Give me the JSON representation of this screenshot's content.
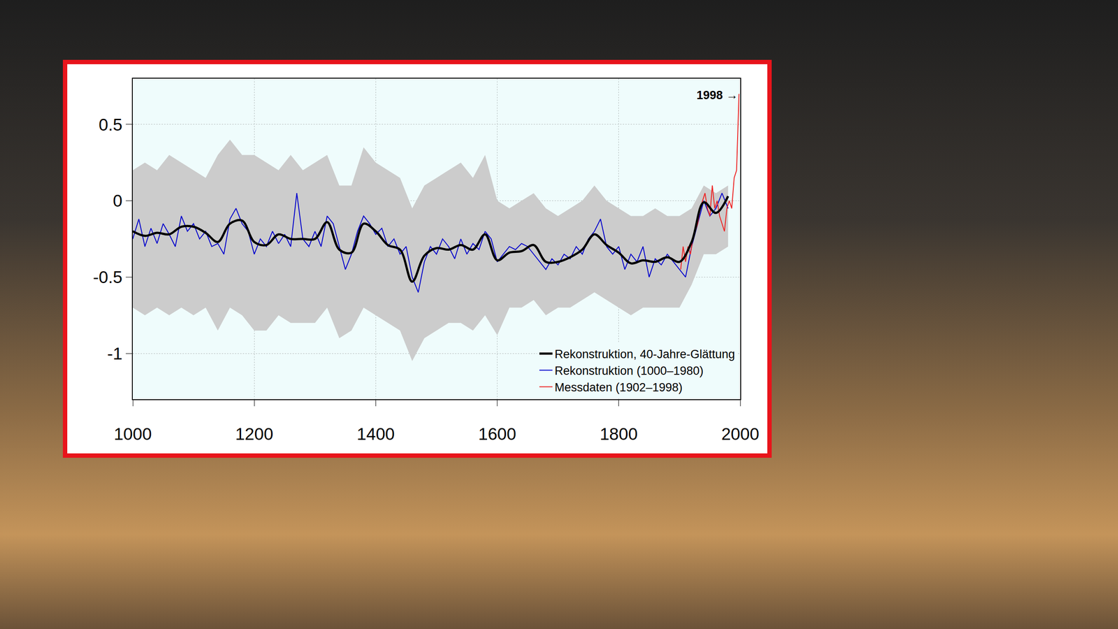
{
  "chart_data": {
    "type": "line",
    "xlim": [
      1000,
      2000
    ],
    "xticks": [
      1000,
      1200,
      1400,
      1600,
      1800,
      2000
    ],
    "ylim": [
      -1.3,
      0.8
    ],
    "yticks": [
      -1,
      -0.5,
      0,
      0.5
    ],
    "grid": true,
    "legend": "lower right",
    "band": {
      "color": "#cccccc",
      "x": [
        1000,
        1020,
        1040,
        1060,
        1080,
        1100,
        1120,
        1140,
        1160,
        1180,
        1200,
        1220,
        1240,
        1260,
        1280,
        1300,
        1320,
        1340,
        1360,
        1380,
        1400,
        1420,
        1440,
        1460,
        1480,
        1500,
        1520,
        1540,
        1560,
        1580,
        1600,
        1620,
        1640,
        1660,
        1680,
        1700,
        1720,
        1740,
        1760,
        1780,
        1800,
        1820,
        1840,
        1860,
        1880,
        1900,
        1920,
        1940,
        1960,
        1980
      ],
      "upper": [
        0.2,
        0.25,
        0.2,
        0.3,
        0.25,
        0.2,
        0.15,
        0.3,
        0.4,
        0.3,
        0.3,
        0.25,
        0.2,
        0.3,
        0.2,
        0.25,
        0.3,
        0.1,
        0.1,
        0.35,
        0.25,
        0.2,
        0.15,
        -0.05,
        0.1,
        0.15,
        0.2,
        0.25,
        0.15,
        0.3,
        0.0,
        -0.05,
        0.0,
        0.05,
        -0.05,
        -0.1,
        -0.05,
        0.0,
        0.1,
        0.0,
        -0.05,
        -0.1,
        -0.1,
        -0.05,
        -0.1,
        -0.1,
        -0.05,
        0.1,
        0.05,
        0.1
      ],
      "lower": [
        -0.7,
        -0.75,
        -0.7,
        -0.75,
        -0.7,
        -0.75,
        -0.7,
        -0.85,
        -0.7,
        -0.75,
        -0.85,
        -0.85,
        -0.75,
        -0.8,
        -0.8,
        -0.8,
        -0.7,
        -0.9,
        -0.85,
        -0.7,
        -0.75,
        -0.8,
        -0.85,
        -1.05,
        -0.9,
        -0.85,
        -0.8,
        -0.8,
        -0.85,
        -0.75,
        -0.88,
        -0.7,
        -0.7,
        -0.65,
        -0.75,
        -0.7,
        -0.7,
        -0.65,
        -0.6,
        -0.65,
        -0.7,
        -0.75,
        -0.7,
        -0.7,
        -0.7,
        -0.7,
        -0.55,
        -0.35,
        -0.35,
        -0.3
      ]
    },
    "series": [
      {
        "name": "Messdaten (1902–1998)",
        "color": "#ee2222",
        "line_style": "solid",
        "x": [
          1902,
          1906,
          1910,
          1914,
          1918,
          1922,
          1926,
          1930,
          1934,
          1938,
          1942,
          1946,
          1950,
          1954,
          1958,
          1962,
          1966,
          1970,
          1974,
          1978,
          1982,
          1986,
          1990,
          1994,
          1998
        ],
        "values": [
          -0.45,
          -0.3,
          -0.4,
          -0.3,
          -0.35,
          -0.25,
          -0.2,
          -0.15,
          -0.05,
          0.0,
          0.05,
          -0.05,
          -0.1,
          0.1,
          -0.05,
          0.0,
          -0.1,
          -0.15,
          -0.2,
          -0.05,
          0.0,
          -0.05,
          0.15,
          0.2,
          0.7
        ]
      },
      {
        "name": "Rekonstruktion (1000–1980)",
        "color": "#0000cc",
        "line_style": "solid",
        "x": [
          1000,
          1010,
          1020,
          1030,
          1040,
          1050,
          1060,
          1070,
          1080,
          1090,
          1100,
          1110,
          1120,
          1130,
          1140,
          1150,
          1160,
          1170,
          1180,
          1190,
          1200,
          1210,
          1220,
          1230,
          1240,
          1250,
          1260,
          1270,
          1280,
          1290,
          1300,
          1310,
          1320,
          1330,
          1340,
          1350,
          1360,
          1370,
          1380,
          1390,
          1400,
          1410,
          1420,
          1430,
          1440,
          1450,
          1460,
          1470,
          1480,
          1490,
          1500,
          1510,
          1520,
          1530,
          1540,
          1550,
          1560,
          1570,
          1580,
          1590,
          1600,
          1610,
          1620,
          1630,
          1640,
          1650,
          1660,
          1670,
          1680,
          1690,
          1700,
          1710,
          1720,
          1730,
          1740,
          1750,
          1760,
          1770,
          1780,
          1790,
          1800,
          1810,
          1820,
          1830,
          1840,
          1850,
          1860,
          1870,
          1880,
          1890,
          1900,
          1910,
          1920,
          1930,
          1940,
          1950,
          1960,
          1970,
          1980
        ],
        "values": [
          -0.25,
          -0.12,
          -0.3,
          -0.18,
          -0.28,
          -0.15,
          -0.22,
          -0.3,
          -0.1,
          -0.2,
          -0.15,
          -0.25,
          -0.2,
          -0.3,
          -0.28,
          -0.35,
          -0.12,
          -0.05,
          -0.15,
          -0.2,
          -0.35,
          -0.25,
          -0.3,
          -0.2,
          -0.28,
          -0.22,
          -0.3,
          0.05,
          -0.25,
          -0.3,
          -0.2,
          -0.3,
          -0.1,
          -0.15,
          -0.3,
          -0.45,
          -0.35,
          -0.2,
          -0.1,
          -0.15,
          -0.22,
          -0.18,
          -0.3,
          -0.25,
          -0.35,
          -0.3,
          -0.5,
          -0.6,
          -0.4,
          -0.3,
          -0.35,
          -0.25,
          -0.3,
          -0.38,
          -0.25,
          -0.35,
          -0.28,
          -0.32,
          -0.2,
          -0.25,
          -0.4,
          -0.35,
          -0.3,
          -0.32,
          -0.28,
          -0.3,
          -0.35,
          -0.4,
          -0.45,
          -0.38,
          -0.42,
          -0.35,
          -0.38,
          -0.3,
          -0.35,
          -0.25,
          -0.2,
          -0.12,
          -0.3,
          -0.35,
          -0.3,
          -0.45,
          -0.35,
          -0.4,
          -0.3,
          -0.5,
          -0.38,
          -0.42,
          -0.35,
          -0.4,
          -0.45,
          -0.5,
          -0.3,
          -0.15,
          0.0,
          -0.1,
          -0.05,
          0.05,
          -0.05
        ]
      },
      {
        "name": "Rekonstruktion, 40-Jahre-Glättung",
        "color": "#000000",
        "line_style": "solid",
        "x": [
          1000,
          1020,
          1040,
          1060,
          1080,
          1100,
          1120,
          1140,
          1160,
          1180,
          1200,
          1220,
          1240,
          1260,
          1280,
          1300,
          1320,
          1340,
          1360,
          1380,
          1400,
          1420,
          1440,
          1460,
          1480,
          1500,
          1520,
          1540,
          1560,
          1580,
          1600,
          1620,
          1640,
          1660,
          1680,
          1700,
          1720,
          1740,
          1760,
          1780,
          1800,
          1820,
          1840,
          1860,
          1880,
          1900,
          1920,
          1940,
          1960,
          1980
        ],
        "values": [
          -0.2,
          -0.23,
          -0.21,
          -0.22,
          -0.17,
          -0.17,
          -0.21,
          -0.27,
          -0.15,
          -0.13,
          -0.27,
          -0.29,
          -0.22,
          -0.25,
          -0.25,
          -0.25,
          -0.14,
          -0.32,
          -0.34,
          -0.15,
          -0.2,
          -0.29,
          -0.32,
          -0.53,
          -0.36,
          -0.31,
          -0.32,
          -0.29,
          -0.32,
          -0.22,
          -0.39,
          -0.34,
          -0.33,
          -0.29,
          -0.4,
          -0.4,
          -0.37,
          -0.32,
          -0.22,
          -0.29,
          -0.34,
          -0.41,
          -0.39,
          -0.4,
          -0.37,
          -0.4,
          -0.27,
          -0.01,
          -0.08,
          0.03
        ]
      }
    ],
    "annotations": [
      {
        "text": "1998 →",
        "x": 1998,
        "y": 0.69
      }
    ]
  }
}
